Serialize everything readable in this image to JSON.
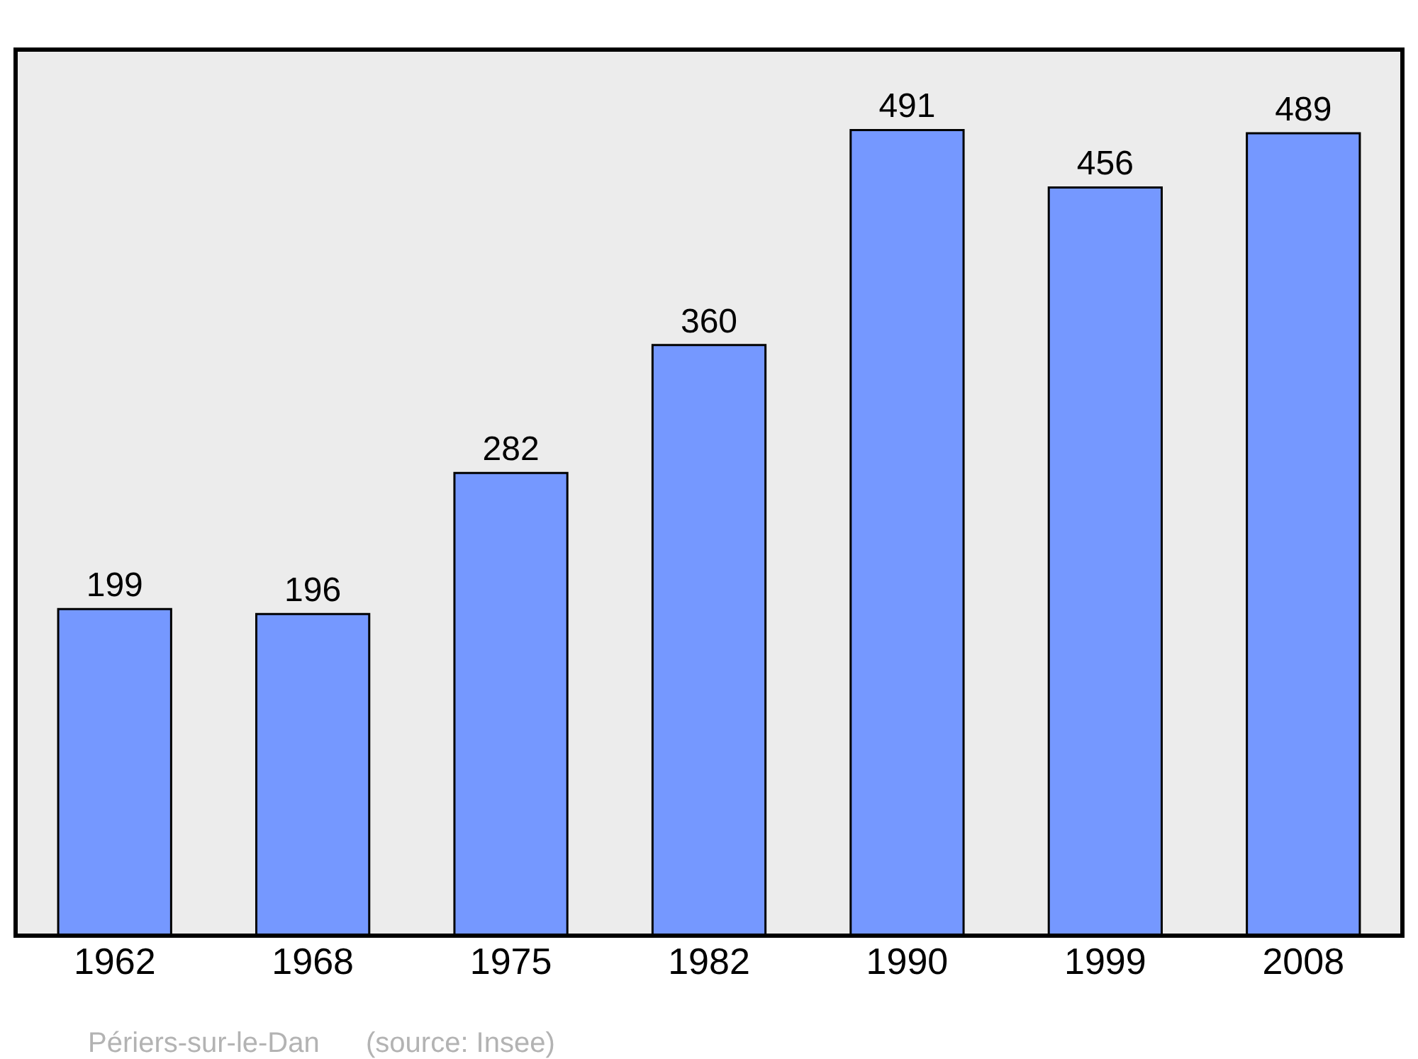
{
  "chart_data": {
    "type": "bar",
    "categories": [
      "1962",
      "1968",
      "1975",
      "1982",
      "1990",
      "1999",
      "2008"
    ],
    "values": [
      199,
      196,
      282,
      360,
      491,
      456,
      489
    ],
    "color": "#7598ff",
    "data_labels": true,
    "ylim": [
      0,
      540
    ],
    "grid": false,
    "legend": false,
    "annotations": [
      "Périers-sur-le-Dan",
      "(source: Insee)"
    ]
  }
}
